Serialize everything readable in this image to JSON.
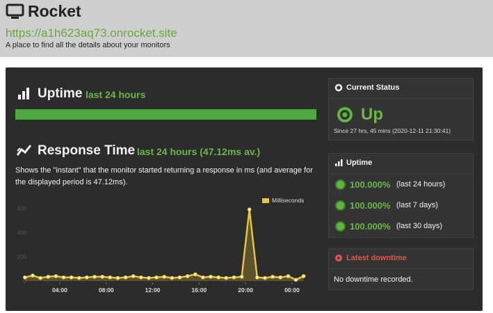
{
  "header": {
    "title": "Rocket",
    "url": "https://a1h623aq73.onrocket.site",
    "subtitle": "A place to find all the details about your monitors"
  },
  "uptime_section": {
    "title": "Uptime",
    "period": "last 24 hours"
  },
  "response_section": {
    "title": "Response Time",
    "period": "last 24 hours (47.12ms av.)",
    "description": "Shows the \"instant\" that the monitor started returning a response in ms (and average for the displayed period is 47.12ms)."
  },
  "chart_data": {
    "type": "line",
    "x": [
      1,
      1.67,
      2.33,
      3,
      3.67,
      4.33,
      5,
      5.67,
      6.33,
      7,
      7.67,
      8.33,
      9,
      9.67,
      10.33,
      11,
      11.67,
      12.33,
      13,
      13.67,
      14.33,
      15,
      15.67,
      16.33,
      17,
      17.67,
      18.33,
      19,
      19.67,
      20.33,
      21,
      21.67,
      22.33,
      23,
      23.67,
      24.33,
      25
    ],
    "series": [
      {
        "name": "Milliseconds",
        "color": "#e8c53a",
        "values": [
          30,
          45,
          25,
          35,
          40,
          30,
          30,
          25,
          30,
          35,
          35,
          30,
          25,
          30,
          40,
          30,
          25,
          30,
          35,
          25,
          30,
          40,
          55,
          30,
          35,
          30,
          25,
          30,
          35,
          590,
          30,
          25,
          35,
          30,
          40,
          10,
          40
        ]
      }
    ],
    "xlim": [
      0.65,
      25.8
    ],
    "xticks": [
      {
        "value": 4,
        "label": "04:00"
      },
      {
        "value": 8,
        "label": "08:00"
      },
      {
        "value": 12,
        "label": "12:00"
      },
      {
        "value": 16,
        "label": "16:00"
      },
      {
        "value": 20,
        "label": "20:00"
      },
      {
        "value": 24,
        "label": "00:00"
      }
    ],
    "ylim": [
      0,
      700
    ],
    "yticks": [
      0,
      200,
      400,
      600
    ],
    "grid": false
  },
  "current_status": {
    "title": "Current Status",
    "status": "Up",
    "since": "Since 27 hrs, 45 mins (2020-12-11 21:30:41)"
  },
  "uptime_panel": {
    "title": "Uptime",
    "rows": [
      {
        "value": "100.000%",
        "period": "(last 24 hours)"
      },
      {
        "value": "100.000%",
        "period": "(last 7 days)"
      },
      {
        "value": "100.000%",
        "period": "(last 30 days)"
      }
    ]
  },
  "latest_downtime": {
    "title": "Latest downtime",
    "message": "No downtime recorded."
  }
}
